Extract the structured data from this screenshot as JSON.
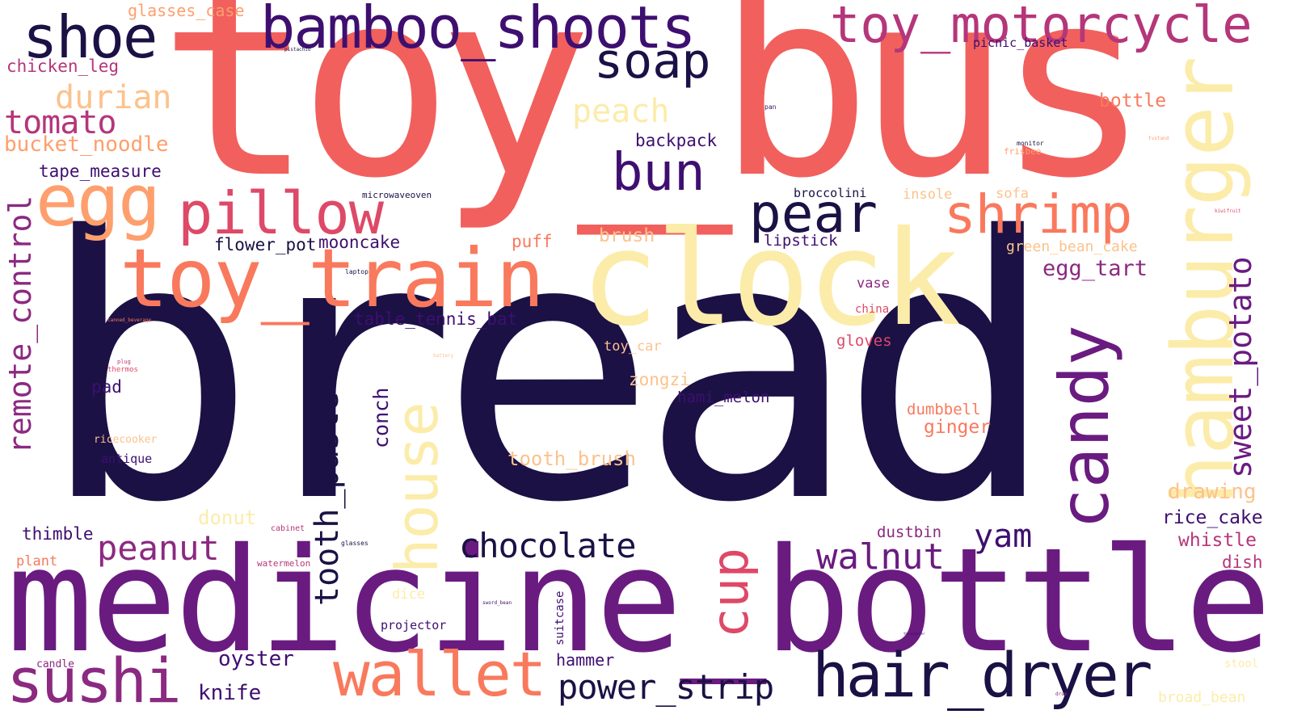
{
  "palette": {
    "navy": "#1b1145",
    "purple": "#6a1b80",
    "indigo": "#3e0f70",
    "magenta": "#8c2981",
    "pink": "#b5367a",
    "rose": "#de4968",
    "coral": "#f1605d",
    "salmon": "#f9795d",
    "orange": "#fe9f6d",
    "peach": "#fcc28c",
    "cream": "#fcecaa"
  },
  "words": [
    {
      "text": "toy_bus",
      "color": "coral"
    },
    {
      "text": "bread",
      "color": "navy"
    },
    {
      "text": "medicine_bottle",
      "color": "purple"
    },
    {
      "text": "clock",
      "color": "cream"
    },
    {
      "text": "hamburger",
      "color": "cream"
    },
    {
      "text": "toy_train",
      "color": "salmon"
    },
    {
      "text": "bamboo_shoots",
      "color": "indigo"
    },
    {
      "text": "toy_motorcycle",
      "color": "pink"
    },
    {
      "text": "shoe",
      "color": "navy"
    },
    {
      "text": "egg",
      "color": "orange"
    },
    {
      "text": "pillow",
      "color": "rose"
    },
    {
      "text": "sushi",
      "color": "magenta"
    },
    {
      "text": "wallet",
      "color": "salmon"
    },
    {
      "text": "hair_dryer",
      "color": "navy"
    },
    {
      "text": "candy",
      "color": "purple"
    },
    {
      "text": "house",
      "color": "cream"
    },
    {
      "text": "soap",
      "color": "navy"
    },
    {
      "text": "bun",
      "color": "indigo"
    },
    {
      "text": "pear",
      "color": "navy"
    },
    {
      "text": "shrimp",
      "color": "salmon"
    },
    {
      "text": "cup",
      "color": "rose"
    },
    {
      "text": "remote_control",
      "color": "magenta"
    },
    {
      "text": "tooth_paste",
      "color": "navy"
    },
    {
      "text": "chocolate",
      "color": "navy"
    },
    {
      "text": "power_strip",
      "color": "navy"
    },
    {
      "text": "walnut",
      "color": "purple"
    },
    {
      "text": "sweet_potato",
      "color": "purple"
    },
    {
      "text": "peanut",
      "color": "magenta"
    },
    {
      "text": "yam",
      "color": "indigo"
    },
    {
      "text": "tomato",
      "color": "pink"
    },
    {
      "text": "durian",
      "color": "peach"
    },
    {
      "text": "peach",
      "color": "cream"
    },
    {
      "text": "bucket_noodle",
      "color": "orange"
    },
    {
      "text": "tape_measure",
      "color": "indigo"
    },
    {
      "text": "chicken_leg",
      "color": "pink"
    },
    {
      "text": "glasses_case",
      "color": "orange"
    },
    {
      "text": "backpack",
      "color": "indigo"
    },
    {
      "text": "bottle",
      "color": "salmon"
    },
    {
      "text": "picnic_basket",
      "color": "indigo"
    },
    {
      "text": "oyster",
      "color": "indigo"
    },
    {
      "text": "knife",
      "color": "indigo"
    },
    {
      "text": "egg_tart",
      "color": "magenta"
    },
    {
      "text": "drawing",
      "color": "peach"
    },
    {
      "text": "rice_cake",
      "color": "indigo"
    },
    {
      "text": "whistle",
      "color": "pink"
    },
    {
      "text": "dish",
      "color": "pink"
    },
    {
      "text": "table_tennis_bat",
      "color": "indigo"
    },
    {
      "text": "flower_pot",
      "color": "navy"
    },
    {
      "text": "mooncake",
      "color": "indigo"
    },
    {
      "text": "puff",
      "color": "salmon"
    },
    {
      "text": "brush",
      "color": "peach"
    },
    {
      "text": "broccolini",
      "color": "navy"
    },
    {
      "text": "lipstick",
      "color": "indigo"
    },
    {
      "text": "insole",
      "color": "peach"
    },
    {
      "text": "sofa",
      "color": "peach"
    },
    {
      "text": "green_bean_cake",
      "color": "peach"
    },
    {
      "text": "vase",
      "color": "magenta"
    },
    {
      "text": "china",
      "color": "rose"
    },
    {
      "text": "gloves",
      "color": "rose"
    },
    {
      "text": "toy_car",
      "color": "peach"
    },
    {
      "text": "zongzi",
      "color": "peach"
    },
    {
      "text": "hami_melon",
      "color": "indigo"
    },
    {
      "text": "dumbbell",
      "color": "salmon"
    },
    {
      "text": "ginger",
      "color": "salmon"
    },
    {
      "text": "conch",
      "color": "indigo"
    },
    {
      "text": "tooth_brush",
      "color": "peach"
    },
    {
      "text": "pad",
      "color": "indigo"
    },
    {
      "text": "thimble",
      "color": "indigo"
    },
    {
      "text": "donut",
      "color": "cream"
    },
    {
      "text": "plant",
      "color": "salmon"
    },
    {
      "text": "candle",
      "color": "magenta"
    },
    {
      "text": "hammer",
      "color": "indigo"
    },
    {
      "text": "projector",
      "color": "indigo"
    },
    {
      "text": "dice",
      "color": "cream"
    },
    {
      "text": "suitcase",
      "color": "indigo"
    },
    {
      "text": "dustbin",
      "color": "magenta"
    },
    {
      "text": "stool",
      "color": "cream"
    },
    {
      "text": "broad_bean",
      "color": "cream"
    },
    {
      "text": "ricecooker",
      "color": "peach"
    },
    {
      "text": "antique",
      "color": "indigo"
    },
    {
      "text": "microwaveoven",
      "color": "navy"
    },
    {
      "text": "laptop",
      "color": "navy"
    },
    {
      "text": "pistachio",
      "color": "navy"
    },
    {
      "text": "pan",
      "color": "indigo"
    },
    {
      "text": "monitor",
      "color": "navy"
    },
    {
      "text": "frisbee",
      "color": "orange"
    },
    {
      "text": "tvstand",
      "color": "orange"
    },
    {
      "text": "kiwifruit",
      "color": "rose"
    },
    {
      "text": "canned_beverage",
      "color": "salmon"
    },
    {
      "text": "plug",
      "color": "pink"
    },
    {
      "text": "thermos",
      "color": "rose"
    },
    {
      "text": "battery",
      "color": "peach"
    },
    {
      "text": "cabinet",
      "color": "pink"
    },
    {
      "text": "glasses",
      "color": "navy"
    },
    {
      "text": "watermelon",
      "color": "pink"
    },
    {
      "text": "sword_bean",
      "color": "indigo"
    },
    {
      "text": "thermometer",
      "color": "indigo"
    },
    {
      "text": "drum",
      "color": "magenta"
    }
  ]
}
